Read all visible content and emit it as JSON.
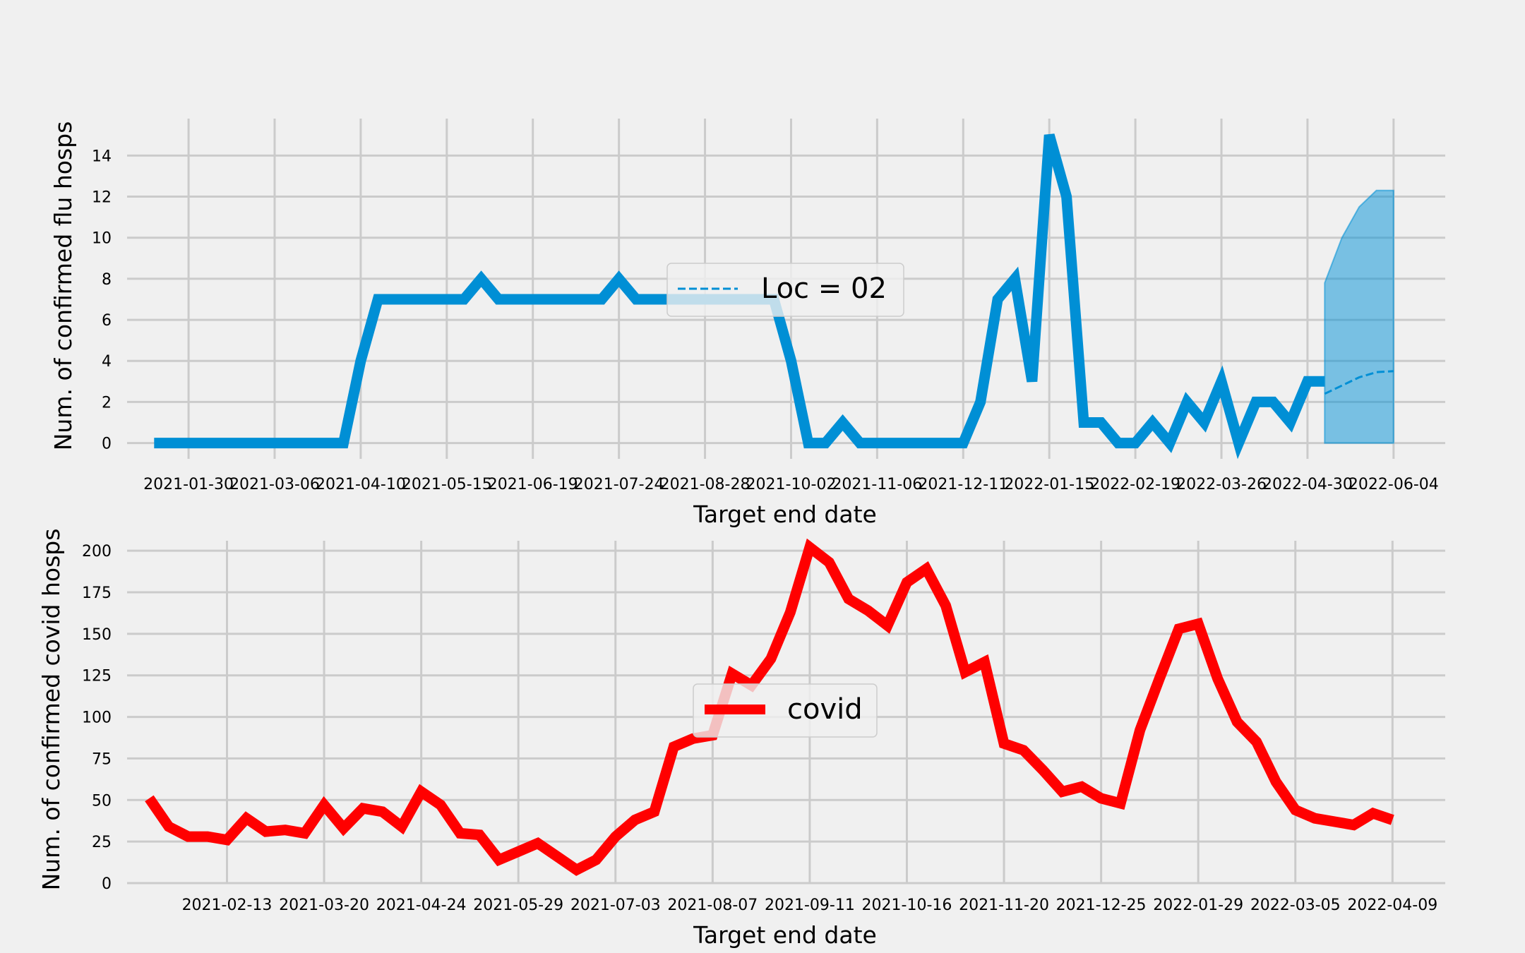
{
  "chart_data": [
    {
      "type": "line",
      "xlabel": "Target end date",
      "ylabel": "Num. of confirmed flu hosps",
      "ylim": [
        -0.77,
        15.8
      ],
      "grid": true,
      "legend": {
        "placement": "center",
        "entries": [
          "Loc = 02"
        ]
      },
      "x_tick_labels": [
        "2021-01-30",
        "2021-03-06",
        "2021-04-10",
        "2021-05-15",
        "2021-06-19",
        "2021-07-24",
        "2021-08-28",
        "2021-10-02",
        "2021-11-06",
        "2021-12-11",
        "2022-01-15",
        "2022-02-19",
        "2022-03-26",
        "2022-04-30",
        "2022-06-04"
      ],
      "y_ticks": [
        0,
        2,
        4,
        6,
        8,
        10,
        12,
        14
      ],
      "series": [
        {
          "color": "#008fd5",
          "start_date": "2021-01-16",
          "step_days": 7,
          "values": [
            0,
            0,
            0,
            0,
            0,
            0,
            0,
            0,
            0,
            0,
            0,
            0,
            4,
            7,
            7,
            7,
            7,
            7,
            7,
            8,
            7,
            7,
            7,
            7,
            7,
            7,
            7,
            8,
            7,
            7,
            7,
            7,
            7,
            7,
            7,
            7,
            7,
            4,
            0,
            0,
            1,
            0,
            0,
            0,
            0,
            0,
            0,
            0,
            2,
            7,
            8,
            3,
            15,
            12,
            1,
            1,
            0,
            0,
            1,
            0,
            2,
            1,
            3,
            0,
            2,
            2,
            1,
            3,
            3
          ]
        },
        {
          "name": "Loc = 02",
          "style": "dashed",
          "color": "#008fd5",
          "dates": [
            "2022-05-07",
            "2022-05-14",
            "2022-05-21",
            "2022-05-28",
            "2022-06-04"
          ],
          "values": [
            2.4,
            2.8,
            3.2,
            3.45,
            3.5
          ],
          "band": {
            "lower": [
              0,
              0,
              0,
              0,
              0
            ],
            "upper": [
              7.8,
              10.0,
              11.5,
              12.3,
              12.3
            ],
            "color": "#008fd5"
          }
        }
      ]
    },
    {
      "type": "line",
      "xlabel": "Target end date",
      "ylabel": "Num. of confirmed covid hosps",
      "ylim": [
        0,
        206
      ],
      "grid": true,
      "legend": {
        "placement": "center",
        "entries": [
          "covid"
        ]
      },
      "x_tick_labels": [
        "2021-02-13",
        "2021-03-20",
        "2021-04-24",
        "2021-05-29",
        "2021-07-03",
        "2021-08-07",
        "2021-09-11",
        "2021-10-16",
        "2021-11-20",
        "2021-12-25",
        "2022-01-29",
        "2022-03-05",
        "2022-04-09"
      ],
      "y_ticks": [
        0,
        25,
        50,
        75,
        100,
        125,
        150,
        175,
        200
      ],
      "series": [
        {
          "name": "covid",
          "color": "#ff0000",
          "start_date": "2021-01-16",
          "step_days": 7,
          "values": [
            51,
            34,
            28,
            28,
            26,
            39,
            31,
            32,
            30,
            47,
            33,
            45,
            43,
            34,
            55,
            47,
            30,
            29,
            14,
            19,
            24,
            16,
            8,
            14,
            28,
            38,
            43,
            82,
            87,
            89,
            126,
            119,
            135,
            163,
            202,
            193,
            171,
            164,
            155,
            181,
            189,
            167,
            127,
            133,
            84,
            80,
            68,
            55,
            58,
            51,
            48,
            92,
            123,
            153,
            156,
            123,
            97,
            85,
            61,
            44,
            39,
            37,
            35,
            42,
            38
          ]
        }
      ]
    }
  ]
}
